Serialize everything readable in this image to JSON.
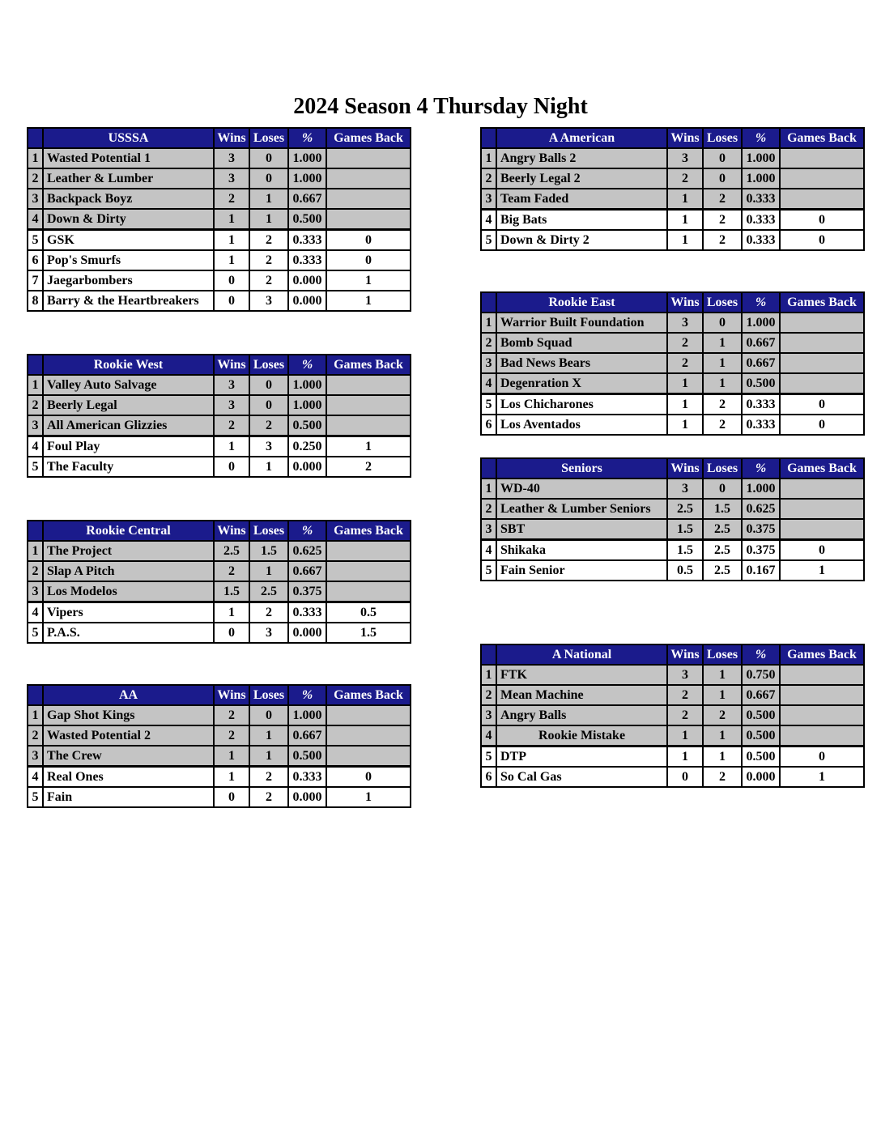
{
  "page": {
    "title": "2024 Season 4 Thursday Night"
  },
  "colors": {
    "header_bg": "#1b1b8c",
    "shaded_row": "#c4c4c4",
    "border": "#000000"
  },
  "columns": {
    "wins": "Wins",
    "loses": "Loses",
    "pct": "%",
    "games_back": "Games Back"
  },
  "tables": [
    {
      "league": "USSSA",
      "rows": [
        {
          "rank": "1",
          "team": "Wasted Potential 1",
          "wins": "3",
          "loses": "0",
          "pct": "1.000",
          "games_back": "",
          "shaded": true
        },
        {
          "rank": "2",
          "team": "Leather & Lumber",
          "wins": "3",
          "loses": "0",
          "pct": "1.000",
          "games_back": "",
          "shaded": true
        },
        {
          "rank": "3",
          "team": "Backpack Boyz",
          "wins": "2",
          "loses": "1",
          "pct": "0.667",
          "games_back": "",
          "shaded": true
        },
        {
          "rank": "4",
          "team": "Down & Dirty",
          "wins": "1",
          "loses": "1",
          "pct": "0.500",
          "games_back": "",
          "shaded": true
        },
        {
          "rank": "5",
          "team": "GSK",
          "wins": "1",
          "loses": "2",
          "pct": "0.333",
          "games_back": "0",
          "shaded": false
        },
        {
          "rank": "6",
          "team": "Pop's Smurfs",
          "wins": "1",
          "loses": "2",
          "pct": "0.333",
          "games_back": "0",
          "shaded": false
        },
        {
          "rank": "7",
          "team": "Jaegarbombers",
          "wins": "0",
          "loses": "2",
          "pct": "0.000",
          "games_back": "1",
          "shaded": false
        },
        {
          "rank": "8",
          "team": "Barry & the Heartbreakers",
          "wins": "0",
          "loses": "3",
          "pct": "0.000",
          "games_back": "1",
          "shaded": false
        }
      ]
    },
    {
      "league": "Rookie West",
      "rows": [
        {
          "rank": "1",
          "team": "Valley Auto Salvage",
          "wins": "3",
          "loses": "0",
          "pct": "1.000",
          "games_back": "",
          "shaded": true
        },
        {
          "rank": "2",
          "team": "Beerly Legal",
          "wins": "3",
          "loses": "0",
          "pct": "1.000",
          "games_back": "",
          "shaded": true
        },
        {
          "rank": "3",
          "team": "All American Glizzies",
          "wins": "2",
          "loses": "2",
          "pct": "0.500",
          "games_back": "",
          "shaded": true
        },
        {
          "rank": "4",
          "team": "Foul Play",
          "wins": "1",
          "loses": "3",
          "pct": "0.250",
          "games_back": "1",
          "shaded": false
        },
        {
          "rank": "5",
          "team": "The Faculty",
          "wins": "0",
          "loses": "1",
          "pct": "0.000",
          "games_back": "2",
          "shaded": false
        }
      ]
    },
    {
      "league": "Rookie Central",
      "rows": [
        {
          "rank": "1",
          "team": "The Project",
          "wins": "2.5",
          "loses": "1.5",
          "pct": "0.625",
          "games_back": "",
          "shaded": true
        },
        {
          "rank": "2",
          "team": "Slap A Pitch",
          "wins": "2",
          "loses": "1",
          "pct": "0.667",
          "games_back": "",
          "shaded": true
        },
        {
          "rank": "3",
          "team": "Los Modelos",
          "wins": "1.5",
          "loses": "2.5",
          "pct": "0.375",
          "games_back": "",
          "shaded": true
        },
        {
          "rank": "4",
          "team": "Vipers",
          "wins": "1",
          "loses": "2",
          "pct": "0.333",
          "games_back": "0.5",
          "shaded": false
        },
        {
          "rank": "5",
          "team": "P.A.S.",
          "wins": "0",
          "loses": "3",
          "pct": "0.000",
          "games_back": "1.5",
          "shaded": false
        }
      ]
    },
    {
      "league": "AA",
      "rows": [
        {
          "rank": "1",
          "team": "Gap Shot Kings",
          "wins": "2",
          "loses": "0",
          "pct": "1.000",
          "games_back": "",
          "shaded": true
        },
        {
          "rank": "2",
          "team": "Wasted Potential 2",
          "wins": "2",
          "loses": "1",
          "pct": "0.667",
          "games_back": "",
          "shaded": true
        },
        {
          "rank": "3",
          "team": "The Crew",
          "wins": "1",
          "loses": "1",
          "pct": "0.500",
          "games_back": "",
          "shaded": true
        },
        {
          "rank": "4",
          "team": "Real Ones",
          "wins": "1",
          "loses": "2",
          "pct": "0.333",
          "games_back": "0",
          "shaded": false
        },
        {
          "rank": "5",
          "team": "Fain",
          "wins": "0",
          "loses": "2",
          "pct": "0.000",
          "games_back": "1",
          "shaded": false
        }
      ]
    },
    {
      "league": "A American",
      "rows": [
        {
          "rank": "1",
          "team": "Angry Balls 2",
          "wins": "3",
          "loses": "0",
          "pct": "1.000",
          "games_back": "",
          "shaded": true
        },
        {
          "rank": "2",
          "team": "Beerly Legal 2",
          "wins": "2",
          "loses": "0",
          "pct": "1.000",
          "games_back": "",
          "shaded": true
        },
        {
          "rank": "3",
          "team": "Team Faded",
          "wins": "1",
          "loses": "2",
          "pct": "0.333",
          "games_back": "",
          "shaded": true
        },
        {
          "rank": "4",
          "team": "Big Bats",
          "wins": "1",
          "loses": "2",
          "pct": "0.333",
          "games_back": "0",
          "shaded": false
        },
        {
          "rank": "5",
          "team": "Down & Dirty 2",
          "wins": "1",
          "loses": "2",
          "pct": "0.333",
          "games_back": "0",
          "shaded": false
        }
      ]
    },
    {
      "league": "Rookie East",
      "rows": [
        {
          "rank": "1",
          "team": "Warrior Built Foundation",
          "wins": "3",
          "loses": "0",
          "pct": "1.000",
          "games_back": "",
          "shaded": true
        },
        {
          "rank": "2",
          "team": "Bomb Squad",
          "wins": "2",
          "loses": "1",
          "pct": "0.667",
          "games_back": "",
          "shaded": true
        },
        {
          "rank": "3",
          "team": "Bad News Bears",
          "wins": "2",
          "loses": "1",
          "pct": "0.667",
          "games_back": "",
          "shaded": true
        },
        {
          "rank": "4",
          "team": "Degenration X",
          "wins": "1",
          "loses": "1",
          "pct": "0.500",
          "games_back": "",
          "shaded": true
        },
        {
          "rank": "5",
          "team": "Los Chicharones",
          "wins": "1",
          "loses": "2",
          "pct": "0.333",
          "games_back": "0",
          "shaded": false
        },
        {
          "rank": "6",
          "team": "Los Aventados",
          "wins": "1",
          "loses": "2",
          "pct": "0.333",
          "games_back": "0",
          "shaded": false
        }
      ]
    },
    {
      "league": "Seniors",
      "rows": [
        {
          "rank": "1",
          "team": "WD-40",
          "wins": "3",
          "loses": "0",
          "pct": "1.000",
          "games_back": "",
          "shaded": true
        },
        {
          "rank": "2",
          "team": "Leather & Lumber Seniors",
          "wins": "2.5",
          "loses": "1.5",
          "pct": "0.625",
          "games_back": "",
          "shaded": true
        },
        {
          "rank": "3",
          "team": "SBT",
          "wins": "1.5",
          "loses": "2.5",
          "pct": "0.375",
          "games_back": "",
          "shaded": true
        },
        {
          "rank": "4",
          "team": "Shikaka",
          "wins": "1.5",
          "loses": "2.5",
          "pct": "0.375",
          "games_back": "0",
          "shaded": false
        },
        {
          "rank": "5",
          "team": "Fain Senior",
          "wins": "0.5",
          "loses": "2.5",
          "pct": "0.167",
          "games_back": "1",
          "shaded": false
        }
      ]
    },
    {
      "league": "A National",
      "rows": [
        {
          "rank": "1",
          "team": "FTK",
          "wins": "3",
          "loses": "1",
          "pct": "0.750",
          "games_back": "",
          "shaded": true
        },
        {
          "rank": "2",
          "team": "Mean Machine",
          "wins": "2",
          "loses": "1",
          "pct": "0.667",
          "games_back": "",
          "shaded": true
        },
        {
          "rank": "3",
          "team": "Angry Balls",
          "wins": "2",
          "loses": "2",
          "pct": "0.500",
          "games_back": "",
          "shaded": true
        },
        {
          "rank": "4",
          "team": "Rookie Mistake",
          "wins": "1",
          "loses": "1",
          "pct": "0.500",
          "games_back": "",
          "shaded": true,
          "team_align": "center"
        },
        {
          "rank": "5",
          "team": "DTP",
          "wins": "1",
          "loses": "1",
          "pct": "0.500",
          "games_back": "0",
          "shaded": false
        },
        {
          "rank": "6",
          "team": "So Cal Gas",
          "wins": "0",
          "loses": "2",
          "pct": "0.000",
          "games_back": "1",
          "shaded": false
        }
      ]
    }
  ]
}
